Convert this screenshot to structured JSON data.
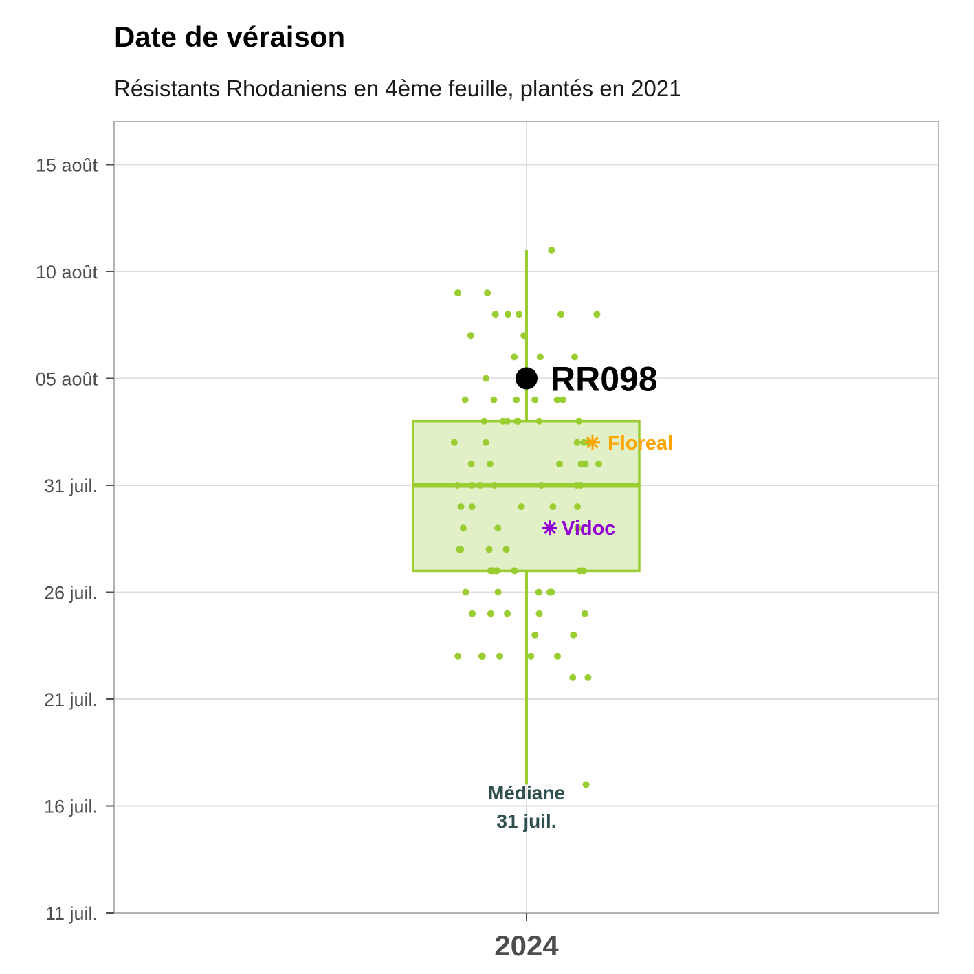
{
  "chart_data": {
    "type": "box",
    "title": "Date de véraison",
    "subtitle": "Résistants Rhodaniens en 4ème feuille, plantés en 2021",
    "x_category": "2024",
    "y_axis": {
      "scale": "date",
      "range": [
        "2024-07-11",
        "2024-08-17"
      ],
      "ticks": [
        {
          "date": "2024-07-11",
          "label": "11 juil."
        },
        {
          "date": "2024-07-16",
          "label": "16 juil."
        },
        {
          "date": "2024-07-21",
          "label": "21 juil."
        },
        {
          "date": "2024-07-26",
          "label": "26 juil."
        },
        {
          "date": "2024-07-31",
          "label": "31 juil."
        },
        {
          "date": "2024-08-05",
          "label": "05 août"
        },
        {
          "date": "2024-08-10",
          "label": "10 août"
        },
        {
          "date": "2024-08-15",
          "label": "15 août"
        }
      ]
    },
    "grid": true,
    "box": {
      "whisker_low": "2024-07-17",
      "q1": "2024-07-27",
      "median": "2024-07-31",
      "q3": "2024-08-03",
      "whisker_high": "2024-08-11",
      "color": "#9acd32",
      "fill": "#e1f0c6"
    },
    "points": {
      "color": "#9acd32",
      "dates": [
        "2024-08-11",
        "2024-08-09",
        "2024-08-09",
        "2024-08-08",
        "2024-08-08",
        "2024-08-08",
        "2024-08-08",
        "2024-08-08",
        "2024-08-07",
        "2024-08-07",
        "2024-08-06",
        "2024-08-06",
        "2024-08-06",
        "2024-08-05",
        "2024-08-04",
        "2024-08-04",
        "2024-08-04",
        "2024-08-04",
        "2024-08-04",
        "2024-08-04",
        "2024-08-03",
        "2024-08-03",
        "2024-08-03",
        "2024-08-03",
        "2024-08-03",
        "2024-08-03",
        "2024-08-03",
        "2024-08-02",
        "2024-08-02",
        "2024-08-02",
        "2024-08-02",
        "2024-08-02",
        "2024-08-01",
        "2024-08-01",
        "2024-08-01",
        "2024-08-01",
        "2024-08-01",
        "2024-08-01",
        "2024-07-31",
        "2024-07-31",
        "2024-07-31",
        "2024-07-31",
        "2024-07-31",
        "2024-07-31",
        "2024-07-31",
        "2024-07-30",
        "2024-07-30",
        "2024-07-30",
        "2024-07-30",
        "2024-07-30",
        "2024-07-29",
        "2024-07-29",
        "2024-07-29",
        "2024-07-29",
        "2024-07-28",
        "2024-07-28",
        "2024-07-28",
        "2024-07-28",
        "2024-07-27",
        "2024-07-27",
        "2024-07-27",
        "2024-07-27",
        "2024-07-27",
        "2024-07-27",
        "2024-07-27",
        "2024-07-26",
        "2024-07-26",
        "2024-07-26",
        "2024-07-26",
        "2024-07-26",
        "2024-07-25",
        "2024-07-25",
        "2024-07-25",
        "2024-07-25",
        "2024-07-25",
        "2024-07-24",
        "2024-07-24",
        "2024-07-23",
        "2024-07-23",
        "2024-07-23",
        "2024-07-23",
        "2024-07-23",
        "2024-07-23",
        "2024-07-22",
        "2024-07-22",
        "2024-07-17"
      ]
    },
    "highlights": [
      {
        "label": "RR098",
        "date": "2024-08-05",
        "marker": "circle",
        "color": "#000000"
      },
      {
        "label": "Floreal",
        "date": "2024-08-02",
        "marker": "asterisk",
        "color": "#ffa500"
      },
      {
        "label": "Vidoc",
        "date": "2024-07-29",
        "marker": "asterisk",
        "color": "#9400d3"
      }
    ],
    "median_annotation": {
      "line1": "Médiane",
      "line2": "31 juil.",
      "color": "#2f4f4f"
    }
  }
}
